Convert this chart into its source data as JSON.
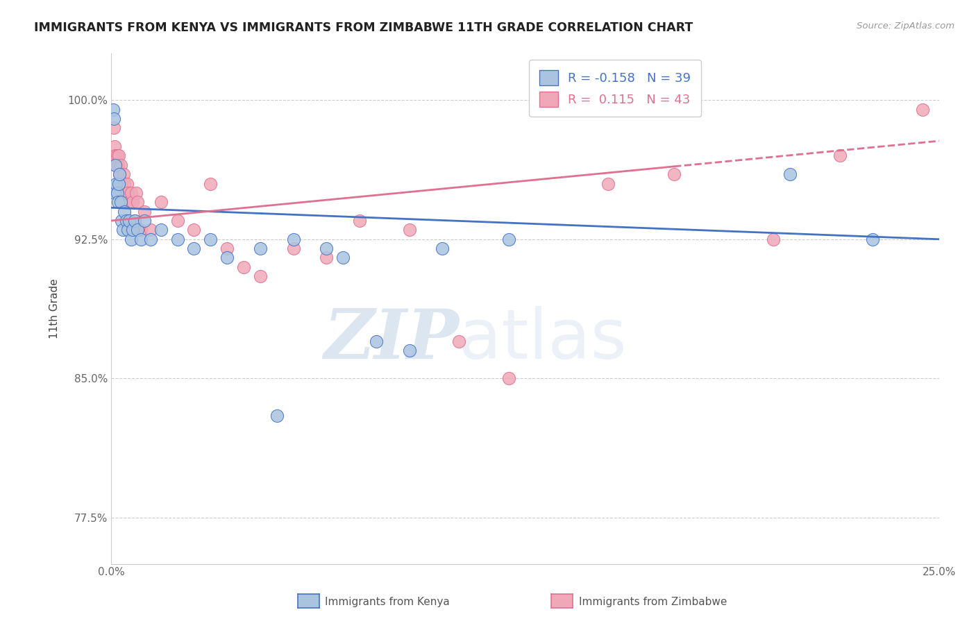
{
  "title": "IMMIGRANTS FROM KENYA VS IMMIGRANTS FROM ZIMBABWE 11TH GRADE CORRELATION CHART",
  "source": "Source: ZipAtlas.com",
  "ylabel": "11th Grade",
  "xlim": [
    0.0,
    25.0
  ],
  "ylim": [
    75.0,
    102.5
  ],
  "xticks": [
    0.0,
    5.0,
    10.0,
    15.0,
    20.0,
    25.0
  ],
  "xticklabels": [
    "0.0%",
    "",
    "",
    "",
    "",
    "25.0%"
  ],
  "ytick_positions": [
    77.5,
    85.0,
    92.5,
    100.0
  ],
  "yticklabels": [
    "77.5%",
    "85.0%",
    "92.5%",
    "100.0%"
  ],
  "kenya_color": "#aac4e0",
  "zimbabwe_color": "#f0a8b8",
  "kenya_line_color": "#4472c4",
  "zimbabwe_line_color": "#e07090",
  "kenya_R": -0.158,
  "kenya_N": 39,
  "zimbabwe_R": 0.115,
  "zimbabwe_N": 43,
  "background_color": "#ffffff",
  "grid_color": "#cccccc",
  "watermark_zip": "ZIP",
  "watermark_atlas": "atlas",
  "kenya_x": [
    0.05,
    0.08,
    0.1,
    0.12,
    0.15,
    0.18,
    0.2,
    0.22,
    0.25,
    0.28,
    0.3,
    0.35,
    0.4,
    0.45,
    0.5,
    0.55,
    0.6,
    0.65,
    0.7,
    0.8,
    0.9,
    1.0,
    1.2,
    1.5,
    2.0,
    2.5,
    3.0,
    3.5,
    4.5,
    5.0,
    5.5,
    6.5,
    7.0,
    8.0,
    9.0,
    10.0,
    12.0,
    20.5,
    23.0
  ],
  "kenya_y": [
    99.5,
    99.0,
    95.0,
    96.5,
    95.5,
    95.0,
    94.5,
    95.5,
    96.0,
    94.5,
    93.5,
    93.0,
    94.0,
    93.5,
    93.0,
    93.5,
    92.5,
    93.0,
    93.5,
    93.0,
    92.5,
    93.5,
    92.5,
    93.0,
    92.5,
    92.0,
    92.5,
    91.5,
    92.0,
    83.0,
    92.5,
    92.0,
    91.5,
    87.0,
    86.5,
    92.0,
    92.5,
    96.0,
    92.5
  ],
  "zimbabwe_x": [
    0.08,
    0.1,
    0.12,
    0.15,
    0.18,
    0.2,
    0.22,
    0.25,
    0.28,
    0.3,
    0.35,
    0.38,
    0.4,
    0.45,
    0.48,
    0.5,
    0.55,
    0.6,
    0.65,
    0.7,
    0.75,
    0.8,
    0.9,
    1.0,
    1.2,
    1.5,
    2.0,
    2.5,
    3.0,
    3.5,
    4.0,
    4.5,
    5.5,
    6.5,
    7.5,
    9.0,
    10.5,
    12.0,
    15.0,
    17.0,
    20.0,
    22.0,
    24.5
  ],
  "zimbabwe_y": [
    98.5,
    97.5,
    97.0,
    96.5,
    97.0,
    96.5,
    97.0,
    96.0,
    96.5,
    95.5,
    95.0,
    96.0,
    95.5,
    95.0,
    95.5,
    95.0,
    94.5,
    95.0,
    94.5,
    93.5,
    95.0,
    94.5,
    93.0,
    94.0,
    93.0,
    94.5,
    93.5,
    93.0,
    95.5,
    92.0,
    91.0,
    90.5,
    92.0,
    91.5,
    93.5,
    93.0,
    87.0,
    85.0,
    95.5,
    96.0,
    92.5,
    97.0,
    99.5
  ],
  "kenya_trend_x0": 0.0,
  "kenya_trend_y0": 94.2,
  "kenya_trend_x1": 25.0,
  "kenya_trend_y1": 92.5,
  "zim_trend_x0": 0.0,
  "zim_trend_y0": 93.5,
  "zim_trend_solid_x1": 17.0,
  "zim_trend_y1": 96.8,
  "zim_trend_x2": 25.0,
  "zim_trend_y2": 97.8
}
